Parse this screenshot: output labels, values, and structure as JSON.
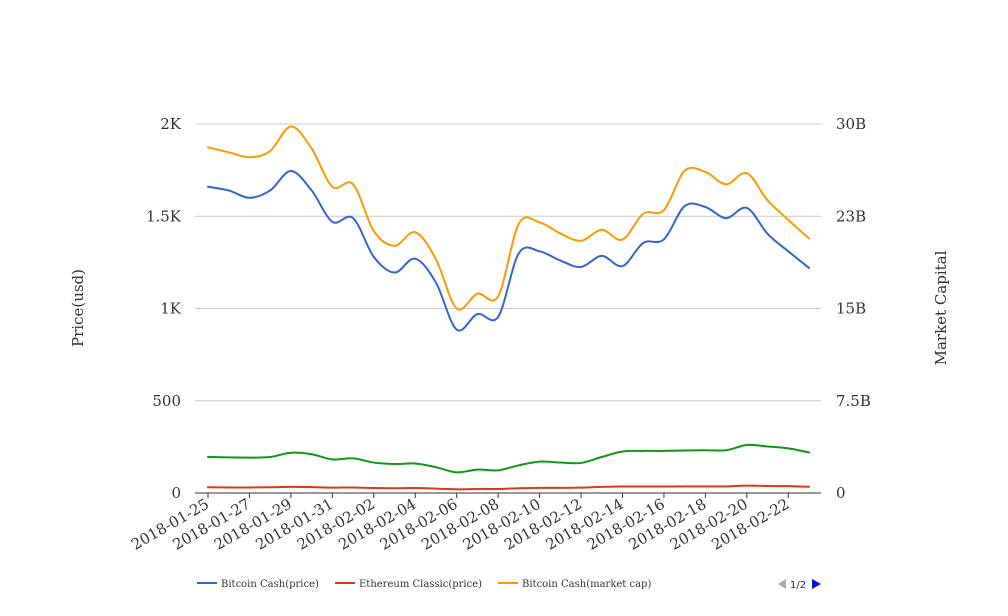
{
  "chart_data": {
    "type": "line",
    "smooth": true,
    "x": [
      "2018-01-25",
      "2018-01-26",
      "2018-01-27",
      "2018-01-28",
      "2018-01-29",
      "2018-01-30",
      "2018-01-31",
      "2018-02-01",
      "2018-02-02",
      "2018-02-03",
      "2018-02-04",
      "2018-02-05",
      "2018-02-06",
      "2018-02-07",
      "2018-02-08",
      "2018-02-09",
      "2018-02-10",
      "2018-02-11",
      "2018-02-12",
      "2018-02-13",
      "2018-02-14",
      "2018-02-15",
      "2018-02-16",
      "2018-02-17",
      "2018-02-18",
      "2018-02-19",
      "2018-02-20",
      "2018-02-21",
      "2018-02-22",
      "2018-02-23"
    ],
    "x_tick_labels": [
      "2018-01-25",
      "2018-01-27",
      "2018-01-29",
      "2018-01-31",
      "2018-02-02",
      "2018-02-04",
      "2018-02-06",
      "2018-02-08",
      "2018-02-10",
      "2018-02-12",
      "2018-02-14",
      "2018-02-16",
      "2018-02-18",
      "2018-02-20",
      "2018-02-22"
    ],
    "y_left": {
      "label": "Price(usd)",
      "range": [
        0,
        2000
      ],
      "ticks": [
        0,
        500,
        1000,
        1500,
        2000
      ],
      "tick_labels": [
        "0",
        "500",
        "1K",
        "1.5K",
        "2K"
      ]
    },
    "y_right": {
      "label": "Market Capital",
      "range": [
        0,
        30000000000
      ],
      "ticks": [
        0,
        7500000000,
        15000000000,
        22500000000,
        30000000000
      ],
      "tick_labels": [
        "0",
        "7.5B",
        "15B",
        "23B",
        "30B"
      ]
    },
    "grid": true,
    "legend_position": "bottom-left",
    "legend_page": "1/2",
    "series": [
      {
        "name": "Bitcoin Cash(price)",
        "axis": "left",
        "color": "#3366cc",
        "values": [
          1660,
          1640,
          1600,
          1640,
          1745,
          1640,
          1470,
          1490,
          1280,
          1195,
          1270,
          1140,
          885,
          970,
          955,
          1300,
          1310,
          1260,
          1225,
          1285,
          1230,
          1355,
          1375,
          1555,
          1550,
          1490,
          1545,
          1405,
          1310,
          1220
        ]
      },
      {
        "name": "Ethereum Classic(price)",
        "axis": "left",
        "color": "#dc3912",
        "values": [
          31,
          30,
          30,
          31,
          33,
          32,
          29,
          30,
          27,
          26,
          27,
          24,
          20,
          22,
          22,
          26,
          28,
          28,
          29,
          33,
          35,
          35,
          35,
          36,
          36,
          36,
          40,
          38,
          37,
          34
        ]
      },
      {
        "name": "Bitcoin Cash(market cap)",
        "axis": "right",
        "color": "#ff9900",
        "values": [
          28100000000,
          27700000000,
          27300000000,
          27800000000,
          29800000000,
          28000000000,
          24900000000,
          25100000000,
          21300000000,
          20100000000,
          21200000000,
          19000000000,
          15000000000,
          16200000000,
          16000000000,
          21900000000,
          22000000000,
          21100000000,
          20500000000,
          21400000000,
          20600000000,
          22700000000,
          23000000000,
          26200000000,
          26100000000,
          25100000000,
          26000000000,
          23800000000,
          22200000000,
          20700000000
        ]
      },
      {
        "name": "",
        "axis": "left",
        "color": "#109618",
        "values": [
          196,
          193,
          192,
          195,
          218,
          210,
          182,
          188,
          165,
          157,
          160,
          140,
          112,
          127,
          123,
          150,
          170,
          165,
          163,
          195,
          225,
          228,
          228,
          230,
          232,
          232,
          260,
          252,
          242,
          220
        ]
      }
    ]
  }
}
